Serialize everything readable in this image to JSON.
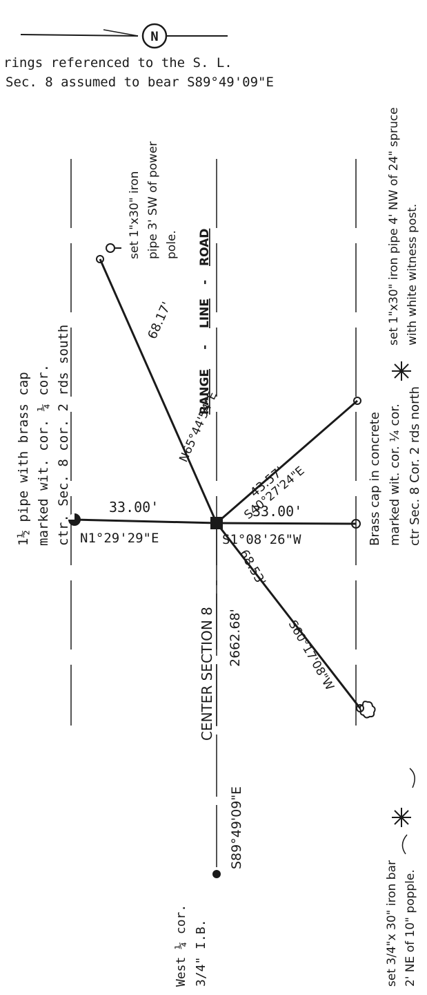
{
  "header": {
    "north_symbol": "N",
    "note_line1": "rings referenced to the S. L.",
    "note_line2": "Sec. 8 assumed to bear S89°49'09\"E"
  },
  "road": {
    "word1": "RANGE",
    "dash1": "-",
    "word2": "LINE",
    "dash2": "-",
    "word3": "ROAD"
  },
  "center": {
    "label": "CENTER SECTION 8",
    "west_distance": "2662.68'",
    "west_bearing": "S89°49'09\"E"
  },
  "courses": {
    "north_distance": "33.00'",
    "north_bearing": "N1°29'29\"E",
    "south_distance": "33.00'",
    "south_bearing": "S1°08'26\"W",
    "ne_distance": "68.17'",
    "ne_bearing": "N65°44'54\"E",
    "se_distance": "43.57'",
    "se_bearing": "S40°27'24\"E",
    "sw_distance": "68.53'",
    "sw_bearing": "S60°17'08\"W"
  },
  "notes": {
    "north_witness": [
      "1½ pipe with brass cap",
      "marked wit. cor. ¼ cor.",
      "ctr. Sec. 8 cor. 2 rds south"
    ],
    "south_witness": [
      "Brass cap in concrete",
      "marked wit. cor. ¼ cor.",
      "ctr Sec. 8 Cor. 2 rds north"
    ],
    "ne_corner": [
      "set 1\"x30\" iron",
      "pipe 3' SW of power",
      "pole."
    ],
    "se_corner": [
      "set 1\"x30\" iron pipe 4' NW of 24\" spruce",
      "with white witness post."
    ],
    "sw_corner": [
      "set 3/4\"x 30\" iron bar",
      "2' NE of 10\" popple."
    ],
    "west_corner": [
      "West ¼ cor.",
      "3/4\" I.B."
    ]
  },
  "icons": [
    "north-arrow-icon",
    "found-monument-icon",
    "set-monument-icon",
    "center-monument-icon",
    "power-pole-icon",
    "spruce-tree-icon",
    "deciduous-tree-icon"
  ]
}
